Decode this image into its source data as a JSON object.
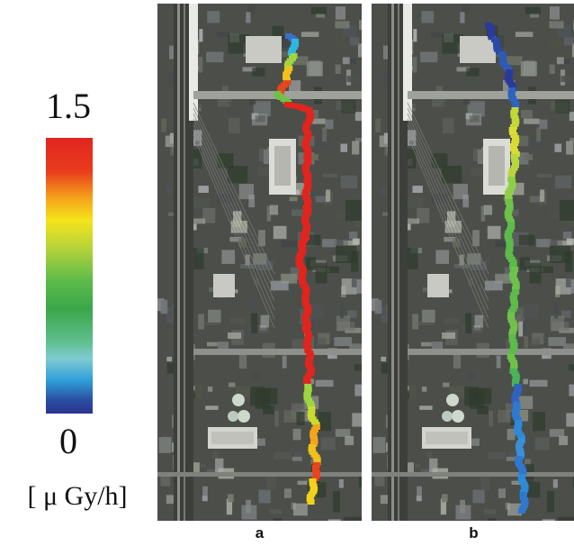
{
  "legend": {
    "max_label": "1.5",
    "min_label": "0",
    "unit_label": "[ μ Gy/h]",
    "colors": [
      "#2b3590",
      "#2f9fd9",
      "#7fcbd2",
      "#3aa64a",
      "#b5d33a",
      "#f4e41c",
      "#f5a51a",
      "#e0251f"
    ]
  },
  "panels": [
    {
      "id": "a",
      "label": "a",
      "route_colors": [
        "#3b6fc6",
        "#2fb6e3",
        "#9ed640",
        "#f2c21c",
        "#e8451d",
        "#6fc14a",
        "#e0251f",
        "#e0251f",
        "#e0251f",
        "#e0251f",
        "#e0251f",
        "#e0251f",
        "#e0251f",
        "#e0251f",
        "#e0251f",
        "#e0251f",
        "#e0251f",
        "#e0251f",
        "#e0251f",
        "#9ed640",
        "#c9dc2e",
        "#f2a51c",
        "#f0c01c",
        "#e8451d",
        "#f2d21c",
        "#9ed640"
      ]
    },
    {
      "id": "b",
      "label": "b",
      "route_colors": [
        "#2b3a9a",
        "#2b4aa6",
        "#2e5bb5",
        "#2b3a9a",
        "#2e63c0",
        "#c3d838",
        "#d8dd34",
        "#b9d63d",
        "#8fcf46",
        "#6fc14a",
        "#5dbb4a",
        "#5dbb4a",
        "#6cc24a",
        "#5dbb4a",
        "#6fc14a",
        "#5dbb4a",
        "#6fc14a",
        "#4ab25a",
        "#2e63c0",
        "#2e78d0",
        "#2e8ad8",
        "#3a8fd6",
        "#2e78d0",
        "#2e8ad8",
        "#2e78d0",
        "#2e8ad8"
      ]
    }
  ]
}
